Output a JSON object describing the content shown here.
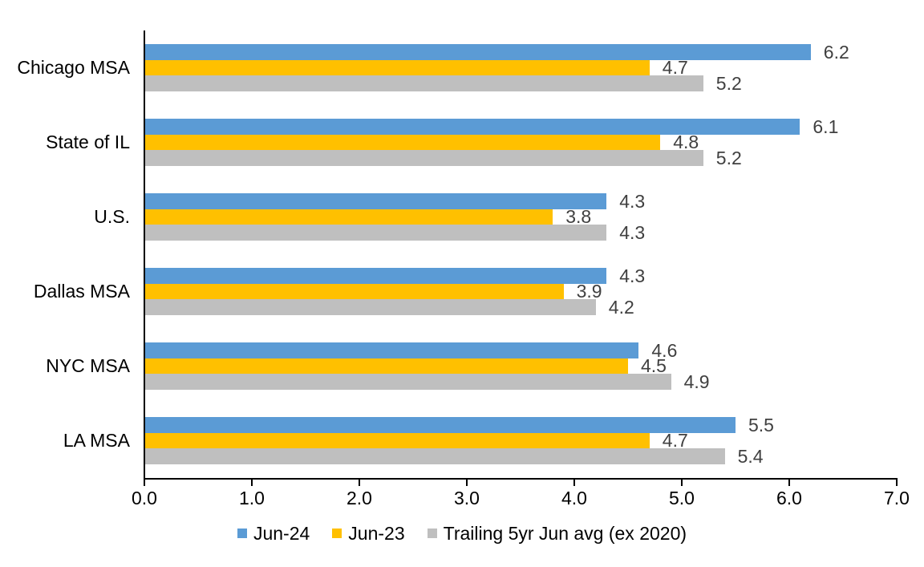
{
  "chart_data": {
    "type": "bar",
    "orientation": "horizontal",
    "title": "",
    "xlabel": "",
    "ylabel": "",
    "categories": [
      "Chicago MSA",
      "State of IL",
      "U.S.",
      "Dallas MSA",
      "NYC MSA",
      "LA MSA"
    ],
    "series": [
      {
        "name": "Jun-24",
        "color": "#5B9BD5",
        "values": [
          6.2,
          6.1,
          4.3,
          4.3,
          4.6,
          5.5
        ]
      },
      {
        "name": "Jun-23",
        "color": "#FFC000",
        "values": [
          4.7,
          4.8,
          3.8,
          3.9,
          4.5,
          4.7
        ]
      },
      {
        "name": "Trailing 5yr Jun avg (ex 2020)",
        "color": "#BFBFBF",
        "values": [
          5.2,
          5.2,
          4.3,
          4.2,
          4.9,
          5.4
        ]
      }
    ],
    "xlim": [
      0.0,
      7.0
    ],
    "xtick_labels": [
      "0.0",
      "1.0",
      "2.0",
      "3.0",
      "4.0",
      "5.0",
      "6.0",
      "7.0"
    ],
    "grid": false,
    "legend_position": "bottom",
    "data_labels": true,
    "data_label_color": "#404040",
    "axis_color": "#000000",
    "background_color": "#FFFFFF"
  }
}
